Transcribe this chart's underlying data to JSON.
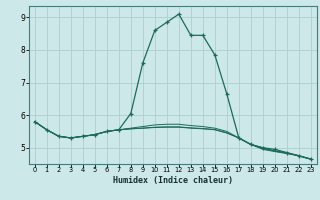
{
  "xlabel": "Humidex (Indice chaleur)",
  "background_color": "#cce8e8",
  "grid_color": "#aad0d0",
  "line_color": "#1a6b5a",
  "spine_color": "#3a8080",
  "xlim": [
    -0.5,
    23.5
  ],
  "ylim": [
    4.5,
    9.35
  ],
  "yticks": [
    5,
    6,
    7,
    8,
    9
  ],
  "xticks": [
    0,
    1,
    2,
    3,
    4,
    5,
    6,
    7,
    8,
    9,
    10,
    11,
    12,
    13,
    14,
    15,
    16,
    17,
    18,
    19,
    20,
    21,
    22,
    23
  ],
  "main_curve": [
    5.8,
    5.55,
    5.35,
    5.3,
    5.35,
    5.4,
    5.5,
    5.55,
    6.05,
    7.6,
    8.6,
    8.85,
    9.1,
    8.45,
    8.45,
    7.85,
    6.65,
    5.3,
    5.1,
    5.0,
    4.95,
    4.85,
    4.75,
    4.65
  ],
  "curve2": [
    5.8,
    5.55,
    5.35,
    5.3,
    5.35,
    5.4,
    5.5,
    5.55,
    5.6,
    5.65,
    5.7,
    5.72,
    5.72,
    5.68,
    5.65,
    5.6,
    5.5,
    5.3,
    5.1,
    5.0,
    4.9,
    4.85,
    4.75,
    4.65
  ],
  "curve3": [
    5.8,
    5.55,
    5.35,
    5.3,
    5.35,
    5.4,
    5.5,
    5.55,
    5.58,
    5.6,
    5.62,
    5.63,
    5.63,
    5.6,
    5.58,
    5.55,
    5.45,
    5.3,
    5.1,
    4.95,
    4.88,
    4.82,
    4.75,
    4.65
  ],
  "curve4": [
    5.8,
    5.55,
    5.35,
    5.3,
    5.35,
    5.4,
    5.5,
    5.55,
    5.58,
    5.6,
    5.63,
    5.64,
    5.64,
    5.61,
    5.59,
    5.56,
    5.46,
    5.3,
    5.1,
    4.97,
    4.9,
    4.83,
    4.76,
    4.65
  ]
}
